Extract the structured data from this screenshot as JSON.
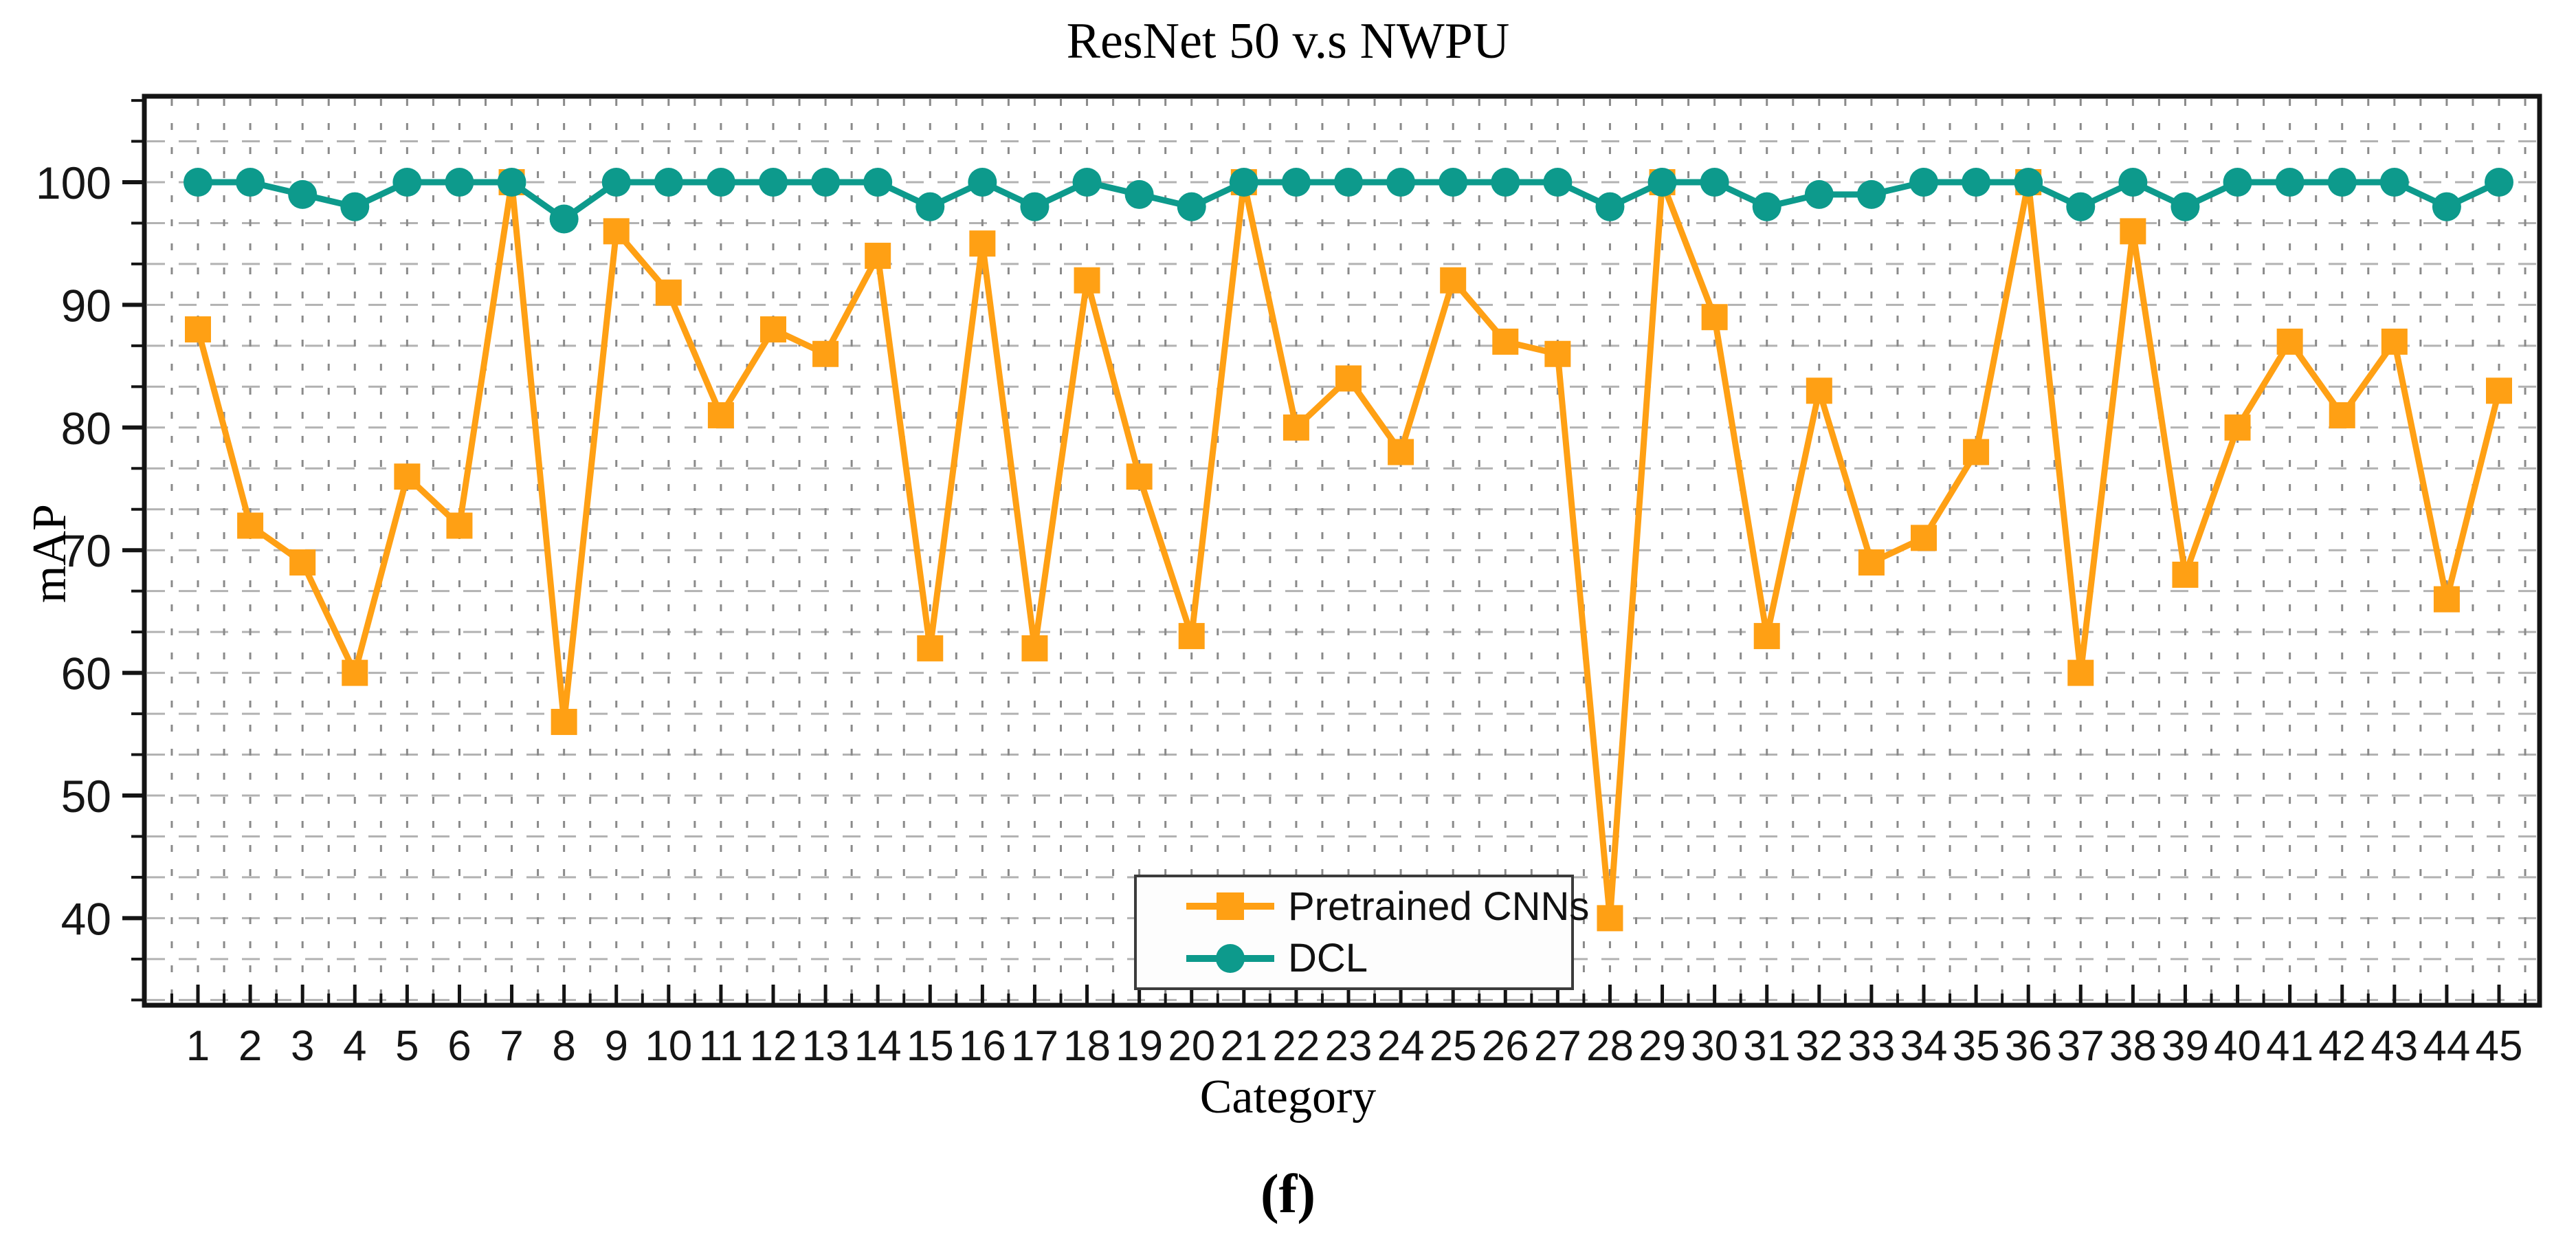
{
  "chart_data": {
    "type": "line",
    "title": "ResNet 50 v.s NWPU",
    "xlabel": "Category",
    "ylabel": "mAP",
    "caption": "(f)",
    "x_categories": [
      1,
      2,
      3,
      4,
      5,
      6,
      7,
      8,
      9,
      10,
      11,
      12,
      13,
      14,
      15,
      16,
      17,
      18,
      19,
      20,
      21,
      22,
      23,
      24,
      25,
      26,
      27,
      28,
      29,
      30,
      31,
      32,
      33,
      34,
      35,
      36,
      37,
      38,
      39,
      40,
      41,
      42,
      43,
      44,
      45
    ],
    "ylim": [
      33,
      107
    ],
    "xlim": [
      0,
      45.8
    ],
    "yticks": [
      40,
      50,
      60,
      70,
      80,
      90,
      100
    ],
    "y_minor_divisions": 3,
    "x_minor_step": 0.5,
    "grid": "on",
    "legend_position": "inside-bottom-center",
    "series": [
      {
        "name": "Pretrained CNNs",
        "marker": "square",
        "color": "#FFA014",
        "values": [
          88,
          72,
          69,
          60,
          76,
          72,
          100,
          56,
          96,
          91,
          81,
          88,
          86,
          94,
          62,
          95,
          62,
          92,
          76,
          63,
          100,
          80,
          84,
          78,
          92,
          87,
          86,
          40,
          100,
          89,
          63,
          83,
          69,
          71,
          78,
          100,
          60,
          96,
          68,
          80,
          87,
          81,
          87,
          66,
          83
        ]
      },
      {
        "name": "DCL",
        "marker": "circle",
        "color": "#0D9A8C",
        "values": [
          100,
          100,
          99,
          98,
          100,
          100,
          100,
          97,
          100,
          100,
          100,
          100,
          100,
          100,
          98,
          100,
          98,
          100,
          99,
          98,
          100,
          100,
          100,
          100,
          100,
          100,
          100,
          98,
          100,
          100,
          98,
          99,
          99,
          100,
          100,
          100,
          98,
          100,
          98,
          100,
          100,
          100,
          100,
          98,
          100
        ]
      }
    ],
    "axis_color": "#141414",
    "tick_label_color": "#161616"
  }
}
